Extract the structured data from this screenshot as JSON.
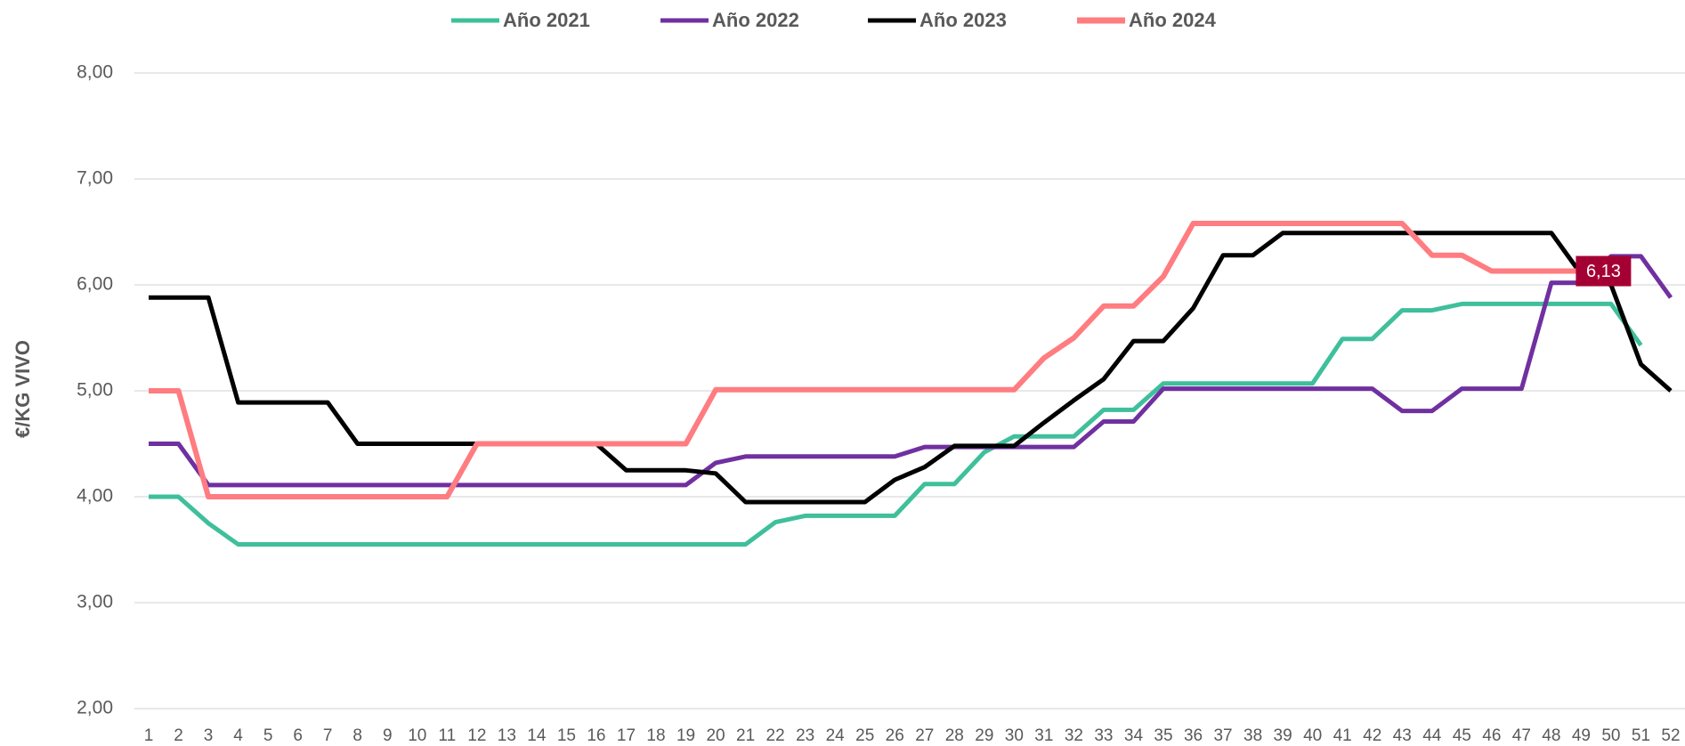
{
  "chart_data": {
    "type": "line",
    "y_label": "€/KG VIVO",
    "categories": [
      1,
      2,
      3,
      4,
      5,
      6,
      7,
      8,
      9,
      10,
      11,
      12,
      13,
      14,
      15,
      16,
      17,
      18,
      19,
      20,
      21,
      22,
      23,
      24,
      25,
      26,
      27,
      28,
      29,
      30,
      31,
      32,
      33,
      34,
      35,
      36,
      37,
      38,
      39,
      40,
      41,
      42,
      43,
      44,
      45,
      46,
      47,
      48,
      49,
      50,
      51,
      52
    ],
    "ylim": [
      2,
      8
    ],
    "yticks": [
      {
        "value": 2,
        "label": "2,00"
      },
      {
        "value": 3,
        "label": "3,00"
      },
      {
        "value": 4,
        "label": "4,00"
      },
      {
        "value": 5,
        "label": "5,00"
      },
      {
        "value": 6,
        "label": "6,00"
      },
      {
        "value": 7,
        "label": "7,00"
      },
      {
        "value": 8,
        "label": "8,00"
      }
    ],
    "grid": true,
    "legend": "top",
    "series": [
      {
        "name": "Año 2021",
        "color": "#3fbf9b",
        "values": [
          4.0,
          4.0,
          3.75,
          3.55,
          3.55,
          3.55,
          3.55,
          3.55,
          3.55,
          3.55,
          3.55,
          3.55,
          3.55,
          3.55,
          3.55,
          3.55,
          3.55,
          3.55,
          3.55,
          3.55,
          3.55,
          3.76,
          3.82,
          3.82,
          3.82,
          3.82,
          4.12,
          4.12,
          4.42,
          4.57,
          4.57,
          4.57,
          4.82,
          4.82,
          5.07,
          5.07,
          5.07,
          5.07,
          5.07,
          5.07,
          5.49,
          5.49,
          5.76,
          5.76,
          5.82,
          5.82,
          5.82,
          5.82,
          5.82,
          5.82,
          5.43,
          null
        ]
      },
      {
        "name": "Año 2022",
        "color": "#7030a0",
        "values": [
          4.5,
          4.5,
          4.11,
          4.11,
          4.11,
          4.11,
          4.11,
          4.11,
          4.11,
          4.11,
          4.11,
          4.11,
          4.11,
          4.11,
          4.11,
          4.11,
          4.11,
          4.11,
          4.11,
          4.32,
          4.38,
          4.38,
          4.38,
          4.38,
          4.38,
          4.38,
          4.47,
          4.47,
          4.47,
          4.47,
          4.47,
          4.47,
          4.71,
          4.71,
          5.02,
          5.02,
          5.02,
          5.02,
          5.02,
          5.02,
          5.02,
          5.02,
          4.81,
          4.81,
          5.02,
          5.02,
          5.02,
          6.02,
          6.02,
          6.27,
          6.27,
          5.88
        ]
      },
      {
        "name": "Año 2023",
        "color": "#000000",
        "values": [
          5.88,
          5.88,
          5.88,
          4.89,
          4.89,
          4.89,
          4.89,
          4.5,
          4.5,
          4.5,
          4.5,
          4.5,
          4.5,
          4.5,
          4.5,
          4.5,
          4.25,
          4.25,
          4.25,
          4.22,
          3.95,
          3.95,
          3.95,
          3.95,
          3.95,
          4.16,
          4.28,
          4.48,
          4.48,
          4.48,
          4.7,
          4.91,
          5.11,
          5.47,
          5.47,
          5.78,
          6.28,
          6.28,
          6.49,
          6.49,
          6.49,
          6.49,
          6.49,
          6.49,
          6.49,
          6.49,
          6.49,
          6.49,
          6.1,
          6.0,
          5.25,
          5.0
        ]
      },
      {
        "name": "Año 2024",
        "color": "#ff7c80",
        "values": [
          5.0,
          5.0,
          4.0,
          4.0,
          4.0,
          4.0,
          4.0,
          4.0,
          4.0,
          4.0,
          4.0,
          4.5,
          4.5,
          4.5,
          4.5,
          4.5,
          4.5,
          4.5,
          4.5,
          5.01,
          5.01,
          5.01,
          5.01,
          5.01,
          5.01,
          5.01,
          5.01,
          5.01,
          5.01,
          5.01,
          5.31,
          5.5,
          5.8,
          5.8,
          6.08,
          6.58,
          6.58,
          6.58,
          6.58,
          6.58,
          6.58,
          6.58,
          6.58,
          6.28,
          6.28,
          6.13,
          6.13,
          6.13,
          6.13,
          null,
          null,
          null
        ],
        "value_labels": [
          null,
          null,
          null,
          null,
          null,
          null,
          null,
          null,
          null,
          null,
          null,
          null,
          null,
          null,
          null,
          null,
          null,
          null,
          null,
          null,
          null,
          null,
          null,
          null,
          null,
          null,
          null,
          null,
          null,
          null,
          null,
          null,
          null,
          null,
          null,
          null,
          null,
          null,
          null,
          null,
          null,
          null,
          null,
          null,
          null,
          null,
          null,
          null,
          "6,13",
          null,
          null,
          null
        ],
        "label_color": "#a50034"
      }
    ]
  }
}
